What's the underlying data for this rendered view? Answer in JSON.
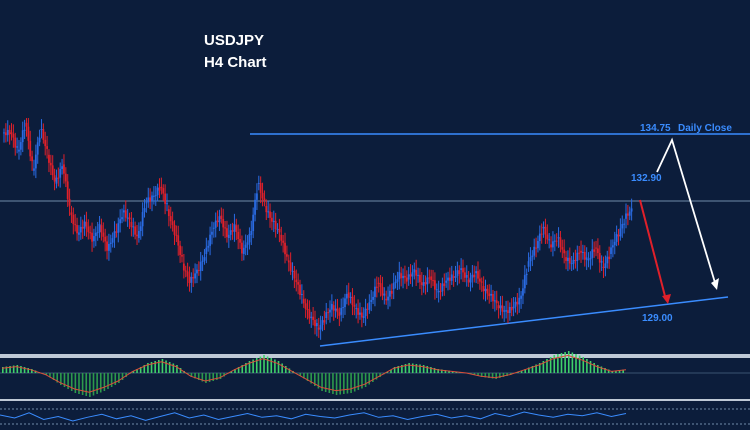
{
  "chart_data": {
    "type": "candlestick",
    "title": "USDJPY",
    "subtitle": "H4 Chart",
    "levels": {
      "resistance": {
        "value": 134.75,
        "label": "134.75",
        "note": "Daily Close"
      },
      "target_high": {
        "value": 132.9,
        "label": "132.90"
      },
      "support": {
        "value": 129.0,
        "label": "129.00"
      }
    },
    "close_path": [
      134.8,
      134.2,
      135.1,
      133.6,
      134.9,
      134.1,
      133.2,
      133.8,
      132.3,
      131.6,
      132.0,
      131.4,
      131.9,
      131.1,
      131.7,
      132.3,
      132.0,
      131.5,
      132.6,
      132.8,
      133.1,
      132.4,
      131.6,
      130.7,
      130.1,
      130.5,
      131.0,
      131.8,
      132.2,
      131.5,
      131.9,
      131.0,
      131.6,
      133.2,
      132.5,
      132.0,
      131.6,
      130.8,
      130.2,
      129.6,
      129.0,
      128.7,
      129.0,
      129.4,
      129.1,
      129.8,
      129.3,
      129.0,
      129.5,
      130.1,
      129.6,
      129.9,
      130.4,
      130.2,
      130.5,
      130.0,
      130.3,
      129.8,
      130.1,
      130.3,
      130.5,
      130.2,
      130.4,
      130.0,
      129.7,
      129.4,
      129.2,
      129.3,
      129.6,
      130.6,
      131.2,
      131.8,
      131.3,
      131.5,
      130.9,
      130.7,
      131.1,
      130.8,
      131.2,
      130.6,
      131.0,
      131.6,
      132.1,
      132.4
    ],
    "close_colors": {
      "up": "#2a6be3",
      "down": "#e0202a"
    },
    "macd_histogram": [
      0.3,
      0.4,
      0.2,
      -0.1,
      -0.6,
      -1.0,
      -1.2,
      -0.9,
      -0.5,
      0.1,
      0.5,
      0.7,
      0.4,
      -0.2,
      -0.5,
      -0.3,
      0.2,
      0.6,
      0.9,
      0.6,
      0.1,
      -0.4,
      -0.9,
      -1.1,
      -1.0,
      -0.7,
      -0.2,
      0.3,
      0.5,
      0.4,
      0.2,
      0.1,
      0.0,
      -0.2,
      -0.3,
      -0.1,
      0.2,
      0.5,
      0.9,
      1.1,
      0.8,
      0.4,
      0.1,
      0.2
    ],
    "macd_colors": {
      "positive": "#3fd16a",
      "negative": "#2d9a4c",
      "signal": "#d94f3a"
    },
    "rsi": [
      52,
      48,
      55,
      46,
      50,
      44,
      49,
      53,
      47,
      51,
      45,
      50,
      55,
      48,
      52,
      46,
      50,
      54,
      49,
      51,
      47,
      53,
      50,
      48,
      52,
      55,
      49,
      51,
      46,
      50,
      53,
      48,
      51,
      47,
      54,
      50,
      56,
      52,
      49,
      53,
      51,
      55,
      50,
      54
    ],
    "grid": false,
    "background": "#0c1d3b",
    "line_color": "#3a8cff"
  }
}
